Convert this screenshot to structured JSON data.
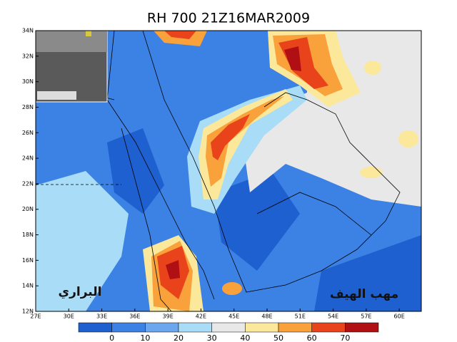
{
  "title": "RH 700 21Z16MAR2009",
  "map": {
    "xlim": [
      27,
      62
    ],
    "ylim": [
      12,
      34
    ],
    "xticks": [
      {
        "value": 27,
        "label": "27E"
      },
      {
        "value": 30,
        "label": "30E"
      },
      {
        "value": 33,
        "label": "33E"
      },
      {
        "value": 36,
        "label": "36E"
      },
      {
        "value": 39,
        "label": "39E"
      },
      {
        "value": 42,
        "label": "42E"
      },
      {
        "value": 45,
        "label": "45E"
      },
      {
        "value": 48,
        "label": "48E"
      },
      {
        "value": 51,
        "label": "51E"
      },
      {
        "value": 54,
        "label": "54E"
      },
      {
        "value": 57,
        "label": "57E"
      },
      {
        "value": 60,
        "label": "60E"
      }
    ],
    "yticks": [
      {
        "value": 12,
        "label": "12N"
      },
      {
        "value": 14,
        "label": "14N"
      },
      {
        "value": 16,
        "label": "16N"
      },
      {
        "value": 18,
        "label": "18N"
      },
      {
        "value": 20,
        "label": "20N"
      },
      {
        "value": 22,
        "label": "22N"
      },
      {
        "value": 24,
        "label": "24N"
      },
      {
        "value": 26,
        "label": "26N"
      },
      {
        "value": 28,
        "label": "28N"
      },
      {
        "value": 30,
        "label": "30N"
      },
      {
        "value": 32,
        "label": "32N"
      },
      {
        "value": 34,
        "label": "34N"
      }
    ]
  },
  "colorbar": {
    "lim": [
      -10,
      80
    ],
    "ticks": [
      0,
      10,
      20,
      30,
      40,
      50,
      60,
      70
    ],
    "colors": [
      "#1e60cf",
      "#3c82e5",
      "#6ba6ee",
      "#a8dcf7",
      "#e8e8e8",
      "#fbe89a",
      "#f9a13a",
      "#e8431b",
      "#b00f14"
    ]
  },
  "annotations": [
    "البراري",
    "مهب الهيف"
  ]
}
